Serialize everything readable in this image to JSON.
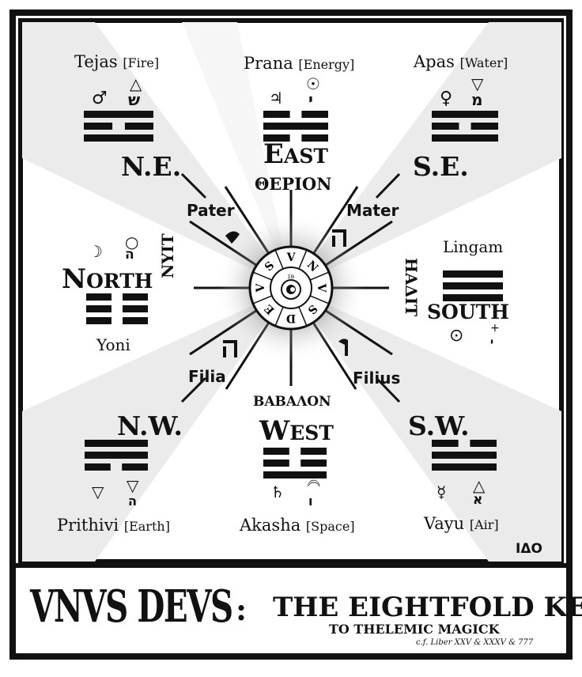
{
  "colors": {
    "ink": "#111111",
    "paper": "#ffffff",
    "ray": "#ebebeb"
  },
  "elements": {
    "tejas": {
      "name": "Tejas",
      "tag": "[Fire]"
    },
    "prana": {
      "name": "Prana",
      "tag": "[Energy]"
    },
    "apas": {
      "name": "Apas",
      "tag": "[Water]"
    },
    "prithivi": {
      "name": "Prithivi",
      "tag": "[Earth]"
    },
    "akasha": {
      "name": "Akasha",
      "tag": "[Space]"
    },
    "vayu": {
      "name": "Vayu",
      "tag": "[Air]"
    }
  },
  "directions": {
    "ne": "N.E.",
    "se": "S.E.",
    "nw": "N.W.",
    "sw": "S.W.",
    "east_initial": "E",
    "east_rest": "AST",
    "west_initial": "W",
    "west_rest": "EST",
    "north_initial": "N",
    "north_rest": "ORTH",
    "south": "SOUTH"
  },
  "greek": {
    "therion": "ΘΕΡΙΟΝ",
    "babalon": "ΒΑΒΑΛΟΝ"
  },
  "persons": {
    "pater": "Pater",
    "mater": "Mater",
    "filia": "Filia",
    "filius": "Filius"
  },
  "side_words": {
    "nuit": "NYIT",
    "hadit": "ΗΑΔΙΤ"
  },
  "center": {
    "ring_letters": [
      "V",
      "N",
      "V",
      "S",
      "D",
      "E",
      "V",
      "S"
    ],
    "glyph": "☾",
    "mark": "ΣΘ"
  },
  "lingam": "Lingam",
  "yoni": "Yoni",
  "glyphs": {
    "tejas_planet": "♂",
    "tejas_elem": "△",
    "tejas_heb": "ש",
    "prana_planet": "♃",
    "prana_elem": "☉",
    "prana_heb": "י",
    "apas_planet": "♀",
    "apas_elem": "▽",
    "apas_heb": "מ",
    "north_moon": "☽",
    "north_sun": "○",
    "north_heb": "ה",
    "south_sun": "⊙",
    "south_cross": "+",
    "south_heb": "י",
    "prithivi_elem": "▽",
    "prithivi_elem2": "▽",
    "prithivi_heb": "ה",
    "akasha_planet": "♄",
    "akasha_moon": "☽",
    "akasha_heb": "ו",
    "vayu_planet": "☿",
    "vayu_elem": "△",
    "vayu_heb": "א"
  },
  "hebrew_path": {
    "pater": "י",
    "mater": "ה",
    "filia": "ה",
    "filius": "ו"
  },
  "banner": {
    "title": "VNVS DEVS",
    "colon": ":",
    "subtitle": "THE EIGHTFOLD KEY",
    "subtitle2": "TO THELEMIC MAGICK",
    "reference": "c.f. Liber XXV & XXXV & 777"
  },
  "logo": "IΔO"
}
